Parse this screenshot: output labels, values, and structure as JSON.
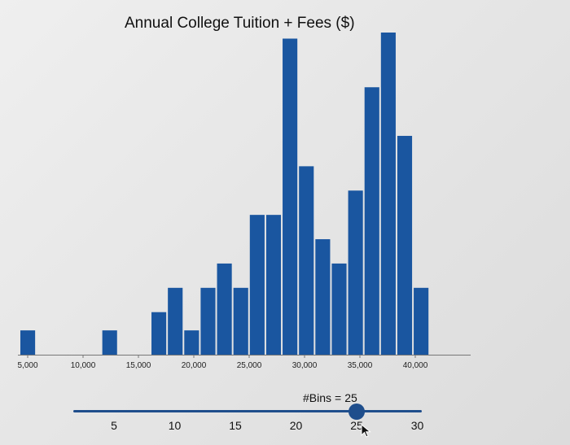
{
  "chart_data": {
    "type": "bar",
    "title": "Annual College Tuition + Fees ($)",
    "xlabel": "",
    "ylabel": "",
    "bin_count": 25,
    "bin_width": 1480,
    "x_range": [
      5000,
      42000
    ],
    "x_ticks": [
      5000,
      10000,
      15000,
      20000,
      25000,
      30000,
      35000,
      40000
    ],
    "x_tick_labels": [
      "5,000",
      "10,000",
      "15,000",
      "20,000",
      "25,000",
      "30,000",
      "35,000",
      "40,000"
    ],
    "ylim": [
      0,
      53
    ],
    "y_axis_shown": false,
    "grid": false,
    "bar_color": "#1a56a0",
    "bins": [
      {
        "x0": 5000,
        "x1": 6480,
        "count": 4
      },
      {
        "x0": 6480,
        "x1": 7960,
        "count": 0
      },
      {
        "x0": 7960,
        "x1": 9440,
        "count": 0
      },
      {
        "x0": 9440,
        "x1": 10920,
        "count": 0
      },
      {
        "x0": 10920,
        "x1": 12400,
        "count": 0
      },
      {
        "x0": 12400,
        "x1": 13880,
        "count": 4
      },
      {
        "x0": 13880,
        "x1": 15360,
        "count": 0
      },
      {
        "x0": 15360,
        "x1": 16840,
        "count": 0
      },
      {
        "x0": 16840,
        "x1": 18320,
        "count": 7
      },
      {
        "x0": 18320,
        "x1": 19800,
        "count": 11
      },
      {
        "x0": 19800,
        "x1": 21280,
        "count": 4
      },
      {
        "x0": 21280,
        "x1": 22760,
        "count": 11
      },
      {
        "x0": 22760,
        "x1": 24240,
        "count": 15
      },
      {
        "x0": 24240,
        "x1": 25720,
        "count": 11
      },
      {
        "x0": 25720,
        "x1": 27200,
        "count": 23
      },
      {
        "x0": 27200,
        "x1": 28680,
        "count": 23
      },
      {
        "x0": 28680,
        "x1": 30160,
        "count": 52
      },
      {
        "x0": 30160,
        "x1": 31640,
        "count": 31
      },
      {
        "x0": 31640,
        "x1": 33120,
        "count": 19
      },
      {
        "x0": 33120,
        "x1": 34600,
        "count": 15
      },
      {
        "x0": 34600,
        "x1": 36080,
        "count": 27
      },
      {
        "x0": 36080,
        "x1": 37560,
        "count": 44
      },
      {
        "x0": 37560,
        "x1": 39040,
        "count": 53
      },
      {
        "x0": 39040,
        "x1": 40520,
        "count": 36
      },
      {
        "x0": 40520,
        "x1": 42000,
        "count": 11
      }
    ]
  },
  "slider": {
    "label": "#Bins",
    "equals": "=",
    "value": 25,
    "value_text": "25",
    "min": 1,
    "max": 32,
    "ticks": [
      5,
      10,
      15,
      20,
      25,
      30
    ],
    "tick_labels": [
      "5",
      "10",
      "15",
      "20",
      "25",
      "30"
    ],
    "accent_color": "#1f4e8c"
  },
  "cursor_icon": "arrow-pointer-icon"
}
